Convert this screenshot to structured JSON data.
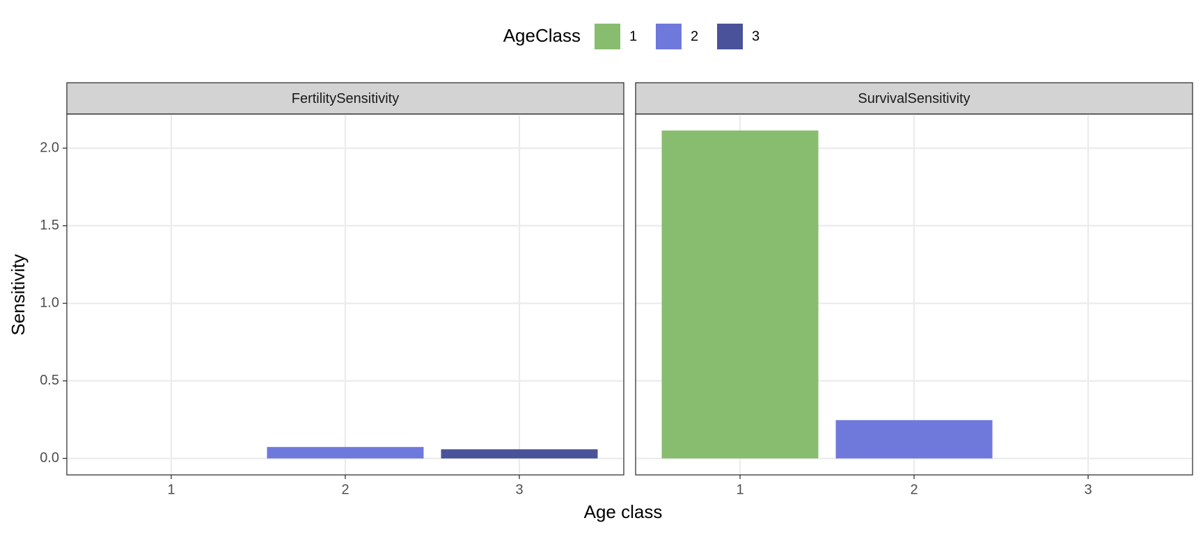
{
  "chart_data": {
    "type": "bar",
    "legend_title": "AgeClass",
    "legend_position": "top",
    "x_label": "Age class",
    "y_label": "Sensitivity",
    "categories": [
      "1",
      "2",
      "3"
    ],
    "colors": [
      "#88bd6f",
      "#6f79dc",
      "#4a529a"
    ],
    "ylim": [
      -0.106,
      2.22
    ],
    "yticks": [
      {
        "value": 0,
        "label": "0.0"
      },
      {
        "value": 0.5,
        "label": "0.5"
      },
      {
        "value": 1,
        "label": "1.0"
      },
      {
        "value": 1.5,
        "label": "1.5"
      },
      {
        "value": 2,
        "label": "2.0"
      }
    ],
    "grid": true,
    "facets": [
      {
        "title": "FertilitySensitivity",
        "values": [
          0,
          0.074,
          0.059
        ]
      },
      {
        "title": "SurvivalSensitivity",
        "values": [
          2.114,
          0.247,
          0
        ]
      }
    ]
  }
}
